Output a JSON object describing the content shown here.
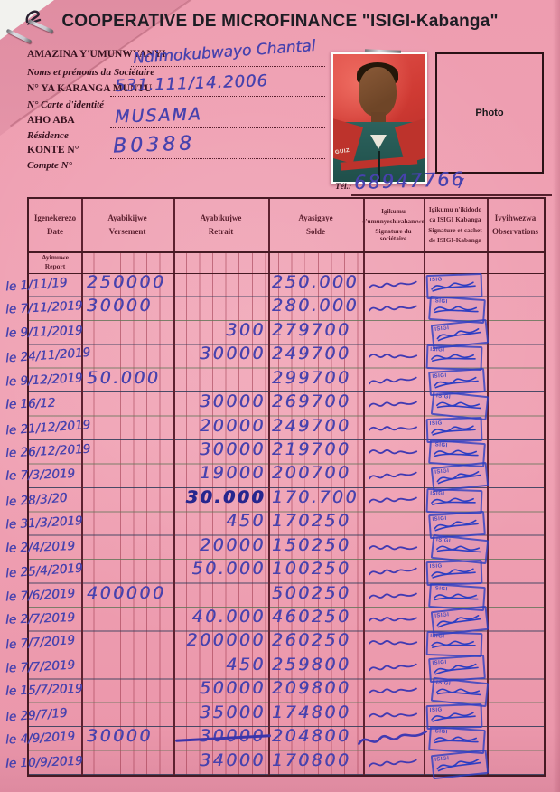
{
  "title": "COOPERATIVE DE MICROFINANCE \"ISIGI-Kabanga\"",
  "member": {
    "fields": [
      {
        "rn": "AMAZINA Y'UMUNWYANYI",
        "fr": "Noms et prénoms du Sociétaire",
        "value": "Ndimokubwayo Chantal"
      },
      {
        "rn": "N° YA KARANGA MUNTU",
        "fr": "N° Carte d'identité",
        "value": "531.111/14.2006"
      },
      {
        "rn": "AHO ABA",
        "fr": "Résidence",
        "value": "MUSAMA"
      },
      {
        "rn": "KONTE N°",
        "fr": "Compte N°",
        "value": "B0388"
      }
    ],
    "tel": {
      "label": "Tél.:",
      "value": "68947766",
      "tick": "/"
    },
    "photo_label": "Photo",
    "photo_jacket_text": "GUIZ"
  },
  "table": {
    "headers": [
      {
        "lines": [
          "Igenekerezo",
          "Date"
        ]
      },
      {
        "lines": [
          "Ayabikijwe",
          "Versement"
        ]
      },
      {
        "lines": [
          "Ayabikujwe",
          "Retrait"
        ]
      },
      {
        "lines": [
          "Ayasigaye",
          "Solde"
        ]
      },
      {
        "lines": [
          "Igikumu",
          "c'umunyeshirahamwe",
          "Signature du sociétaire"
        ]
      },
      {
        "lines": [
          "Igikumu n'ikidodo",
          "ca ISIGI Kabanga",
          "Signature et cachet",
          "de ISIGI-Kabanga"
        ]
      },
      {
        "lines": [
          "Ivyihwezwa",
          "Observations"
        ]
      }
    ],
    "carry_row": {
      "rn": "Ayimuwe",
      "fr": "Report"
    },
    "stamp_text": "ISIGI",
    "rows": [
      {
        "date": "le 1/11/19",
        "versement": "250000",
        "retrait": "",
        "solde": "250.000",
        "sig": true,
        "stamp": true
      },
      {
        "date": "le 7/11/2019",
        "versement": "30000",
        "retrait": "",
        "solde": "280.000",
        "sig": true,
        "stamp": true
      },
      {
        "date": "le 9/11/2019",
        "versement": "",
        "retrait": "300",
        "solde": "279700",
        "sig": false,
        "stamp": true
      },
      {
        "date": "le 24/11/2019",
        "versement": "",
        "retrait": "30000",
        "solde": "249700",
        "sig": true,
        "stamp": true
      },
      {
        "date": "le 9/12/2019",
        "versement": "50.000",
        "retrait": "",
        "solde": "299700",
        "sig": true,
        "stamp": true
      },
      {
        "date": "le 16/12",
        "versement": "",
        "retrait": "30000",
        "solde": "269700",
        "sig": true,
        "stamp": true
      },
      {
        "date": "le 21/12/2019",
        "versement": "",
        "retrait": "20000",
        "solde": "249700",
        "sig": true,
        "stamp": true
      },
      {
        "date": "le 26/12/2019",
        "versement": "",
        "retrait": "30000",
        "solde": "219700",
        "sig": true,
        "stamp": true
      },
      {
        "date": "le 7/3/2019",
        "versement": "",
        "retrait": "19000",
        "solde": "200700",
        "sig": true,
        "stamp": true
      },
      {
        "date": "le 28/3/20",
        "versement": "",
        "retrait": "30.000",
        "solde": "170.700",
        "sig": true,
        "stamp": true,
        "bold": true
      },
      {
        "date": "le 31/3/2019",
        "versement": "",
        "retrait": "450",
        "solde": "170250",
        "sig": false,
        "stamp": true
      },
      {
        "date": "le 2/4/2019",
        "versement": "",
        "retrait": "20000",
        "solde": "150250",
        "sig": true,
        "stamp": true
      },
      {
        "date": "le 25/4/2019",
        "versement": "",
        "retrait": "50.000",
        "solde": "100250",
        "sig": true,
        "stamp": true
      },
      {
        "date": "le 7/6/2019",
        "versement": "400000",
        "retrait": "",
        "solde": "500250",
        "sig": true,
        "stamp": true
      },
      {
        "date": "le 2/7/2019",
        "versement": "",
        "retrait": "40.000",
        "solde": "460250",
        "sig": true,
        "stamp": true
      },
      {
        "date": "le 7/7/2019",
        "versement": "",
        "retrait": "200000",
        "solde": "260250",
        "sig": true,
        "stamp": true
      },
      {
        "date": "le 7/7/2019",
        "versement": "",
        "retrait": "450",
        "solde": "259800",
        "sig": true,
        "stamp": true
      },
      {
        "date": "le 15/7/2019",
        "versement": "",
        "retrait": "50000",
        "solde": "209800",
        "sig": true,
        "stamp": true
      },
      {
        "date": "le 29/7/19",
        "versement": "",
        "retrait": "35000",
        "solde": "174800",
        "sig": true,
        "stamp": true
      },
      {
        "date": "le 4/9/2019",
        "versement": "30000",
        "retrait": "30000",
        "solde": "204800",
        "sig": "big",
        "stamp": true,
        "strike": true
      },
      {
        "date": "le 10/9/2019",
        "versement": "",
        "retrait": "34000",
        "solde": "170800",
        "sig": true,
        "stamp": true
      }
    ]
  },
  "colors": {
    "paper": "#efa0b2",
    "ink": "#4742ae",
    "stamp_blue": "#2d3ec3",
    "grid_maroon": "#5d2130"
  }
}
